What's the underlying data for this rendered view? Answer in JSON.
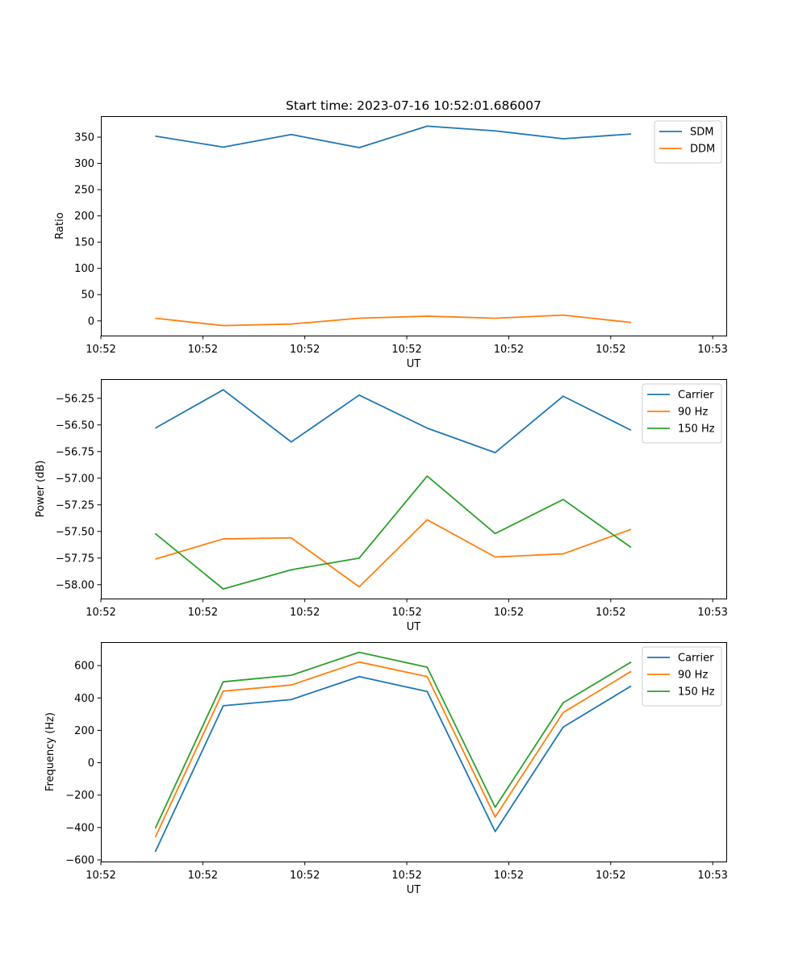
{
  "figure_title": "Start time: 2023-07-16 10:52:01.686007",
  "colors": {
    "blue": "#1f77b4",
    "orange": "#ff7f0e",
    "green": "#2ca02c"
  },
  "chart_data": [
    {
      "type": "line",
      "name": "ratio",
      "title": "Start time: 2023-07-16 10:52:01.686007",
      "xlabel": "UT",
      "ylabel": "Ratio",
      "x": [
        1,
        2,
        3,
        4,
        5,
        6,
        7,
        8
      ],
      "xlim": [
        0.2,
        9.4
      ],
      "x_ticks": [
        0.2,
        1.7,
        3.2,
        4.7,
        6.2,
        7.7,
        9.2
      ],
      "x_tick_labels": [
        "10:52",
        "10:52",
        "10:52",
        "10:52",
        "10:52",
        "10:52",
        "10:53"
      ],
      "ylim": [
        -28,
        390
      ],
      "y_ticks": [
        0,
        50,
        100,
        150,
        200,
        250,
        300,
        350
      ],
      "y_tick_labels": [
        "0",
        "50",
        "100",
        "150",
        "200",
        "250",
        "300",
        "350"
      ],
      "legend_position": "top-right",
      "series": [
        {
          "name": "SDM",
          "color": "#1f77b4",
          "values": [
            352,
            331,
            355,
            330,
            371,
            362,
            347,
            356
          ]
        },
        {
          "name": "DDM",
          "color": "#ff7f0e",
          "values": [
            5,
            -9,
            -6,
            5,
            9,
            5,
            11,
            -3
          ]
        }
      ]
    },
    {
      "type": "line",
      "name": "power",
      "title": "",
      "xlabel": "UT",
      "ylabel": "Power (dB)",
      "x": [
        1,
        2,
        3,
        4,
        5,
        6,
        7,
        8
      ],
      "xlim": [
        0.2,
        9.4
      ],
      "x_ticks": [
        0.2,
        1.7,
        3.2,
        4.7,
        6.2,
        7.7,
        9.2
      ],
      "x_tick_labels": [
        "10:52",
        "10:52",
        "10:52",
        "10:52",
        "10:52",
        "10:52",
        "10:53"
      ],
      "ylim": [
        -58.13,
        -56.07
      ],
      "y_ticks": [
        -58.0,
        -57.75,
        -57.5,
        -57.25,
        -57.0,
        -56.75,
        -56.5,
        -56.25
      ],
      "y_tick_labels": [
        "−58.00",
        "−57.75",
        "−57.50",
        "−57.25",
        "−57.00",
        "−56.75",
        "−56.50",
        "−56.25"
      ],
      "legend_position": "top-right",
      "series": [
        {
          "name": "Carrier",
          "color": "#1f77b4",
          "values": [
            -56.53,
            -56.17,
            -56.66,
            -56.22,
            -56.53,
            -56.76,
            -56.23,
            -56.55
          ]
        },
        {
          "name": "90 Hz",
          "color": "#ff7f0e",
          "values": [
            -57.76,
            -57.57,
            -57.56,
            -58.02,
            -57.39,
            -57.74,
            -57.71,
            -57.48
          ]
        },
        {
          "name": "150 Hz",
          "color": "#2ca02c",
          "values": [
            -57.52,
            -58.04,
            -57.86,
            -57.75,
            -56.98,
            -57.52,
            -57.2,
            -57.65
          ]
        }
      ]
    },
    {
      "type": "line",
      "name": "frequency",
      "title": "",
      "xlabel": "UT",
      "ylabel": "Frequency (Hz)",
      "x": [
        1,
        2,
        3,
        4,
        5,
        6,
        7,
        8
      ],
      "xlim": [
        0.2,
        9.4
      ],
      "x_ticks": [
        0.2,
        1.7,
        3.2,
        4.7,
        6.2,
        7.7,
        9.2
      ],
      "x_tick_labels": [
        "10:52",
        "10:52",
        "10:52",
        "10:52",
        "10:52",
        "10:52",
        "10:53"
      ],
      "ylim": [
        -610,
        745
      ],
      "y_ticks": [
        -600,
        -400,
        -200,
        0,
        200,
        400,
        600
      ],
      "y_tick_labels": [
        "−600",
        "−400",
        "−200",
        "0",
        "200",
        "400",
        "600"
      ],
      "legend_position": "top-right",
      "series": [
        {
          "name": "Carrier",
          "color": "#1f77b4",
          "values": [
            -550,
            352,
            390,
            532,
            440,
            -425,
            220,
            474
          ]
        },
        {
          "name": "90 Hz",
          "color": "#ff7f0e",
          "values": [
            -460,
            442,
            480,
            622,
            532,
            -335,
            310,
            564
          ]
        },
        {
          "name": "150 Hz",
          "color": "#2ca02c",
          "values": [
            -405,
            500,
            540,
            682,
            590,
            -275,
            370,
            622
          ]
        }
      ]
    }
  ]
}
